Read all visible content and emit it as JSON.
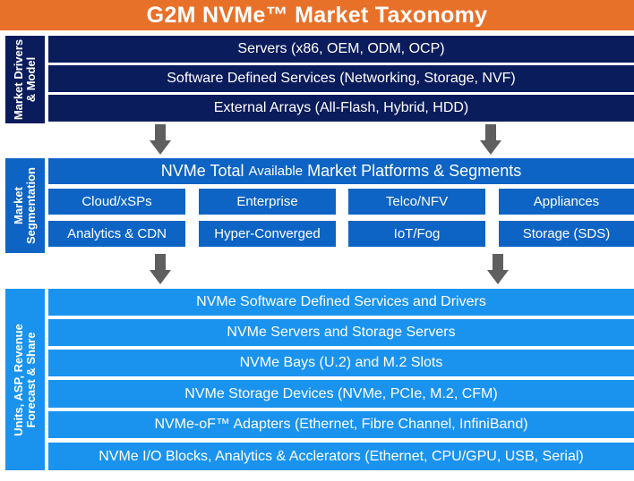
{
  "title": "G2M NVMe™ Market Taxonomy",
  "sections": {
    "drivers": {
      "label_line1": "Market Drivers",
      "label_line2": "& Model",
      "rows": [
        "Servers (x86, OEM, ODM, OCP)",
        "Software Defined Services (Networking, Storage, NVF)",
        "External Arrays (All-Flash, Hybrid, HDD)"
      ]
    },
    "segmentation": {
      "label_line1": "Market",
      "label_line2": "Segmentation",
      "header_main": "NVMe Total",
      "header_small": "Available",
      "header_rest": "Market Platforms & Segments",
      "segments": [
        "Cloud/xSPs",
        "Enterprise",
        "Telco/NFV",
        "Appliances",
        "Analytics & CDN",
        "Hyper-Converged",
        "IoT/Fog",
        "Storage (SDS)"
      ]
    },
    "forecast": {
      "label_line1": "Units, ASP, Revenue",
      "label_line2": "Forecast & Share",
      "rows": [
        "NVMe Software Defined Services and Drivers",
        "NVMe Servers and Storage Servers",
        "NVMe Bays (U.2) and M.2 Slots",
        "NVMe Storage Devices (NVMe, PCIe, M.2, CFM)",
        "NVMe-oF™ Adapters (Ethernet, Fibre Channel, InfiniBand)",
        "NVMe I/O Blocks, Analytics & Acclerators (Ethernet, CPU/GPU, USB, Serial)"
      ]
    }
  },
  "colors": {
    "title_bg": "#e8712a",
    "navy": "#0b1c5c",
    "royal_blue": "#0e64c4",
    "sky_blue": "#1a93ef",
    "arrow": "#5f5f5f"
  }
}
